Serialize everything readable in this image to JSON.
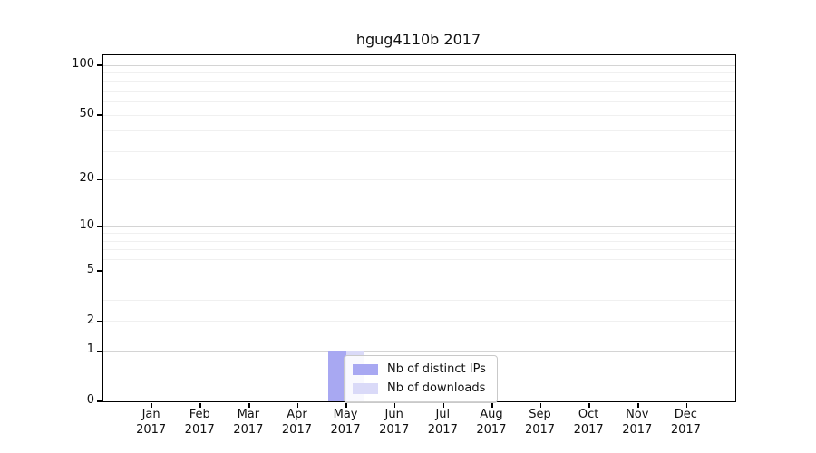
{
  "figure": {
    "title": "hgug4110b 2017",
    "background": "#ffffff"
  },
  "chart_data": {
    "type": "bar",
    "title": "hgug4110b 2017",
    "categories": [
      "Jan 2017",
      "Feb 2017",
      "Mar 2017",
      "Apr 2017",
      "May 2017",
      "Jun 2017",
      "Jul 2017",
      "Aug 2017",
      "Sep 2017",
      "Oct 2017",
      "Nov 2017",
      "Dec 2017"
    ],
    "series": [
      {
        "name": "Nb of distinct IPs",
        "color": "#a8a8f2",
        "values": [
          0,
          0,
          0,
          0,
          1,
          0,
          0,
          0,
          0,
          0,
          0,
          0
        ]
      },
      {
        "name": "Nb of downloads",
        "color": "#dadaf8",
        "values": [
          0,
          0,
          0,
          0,
          1,
          0,
          0,
          0,
          0,
          0,
          0,
          0
        ]
      }
    ],
    "yscale": "log1p",
    "ylim": [
      0,
      115
    ],
    "ytick_values": [
      0,
      1,
      2,
      5,
      10,
      20,
      50,
      100
    ],
    "ytick_labels": [
      "0",
      "1",
      "2",
      "5",
      "10",
      "20",
      "50",
      "100"
    ],
    "major_gridlines": [
      1,
      10,
      100
    ],
    "minor_gridlines": [
      2,
      3,
      4,
      6,
      7,
      8,
      9,
      20,
      30,
      40,
      50,
      60,
      70,
      80,
      90
    ],
    "grid": true,
    "legend_position": "bottom-center"
  },
  "colors": {
    "spine": "#000000",
    "major_grid": "#d4d4d4",
    "minor_grid": "#f0f0f0",
    "legend_border": "#c9c9c9",
    "series_distinct_ips": "#a8a8f2",
    "series_downloads": "#dadaf8"
  }
}
